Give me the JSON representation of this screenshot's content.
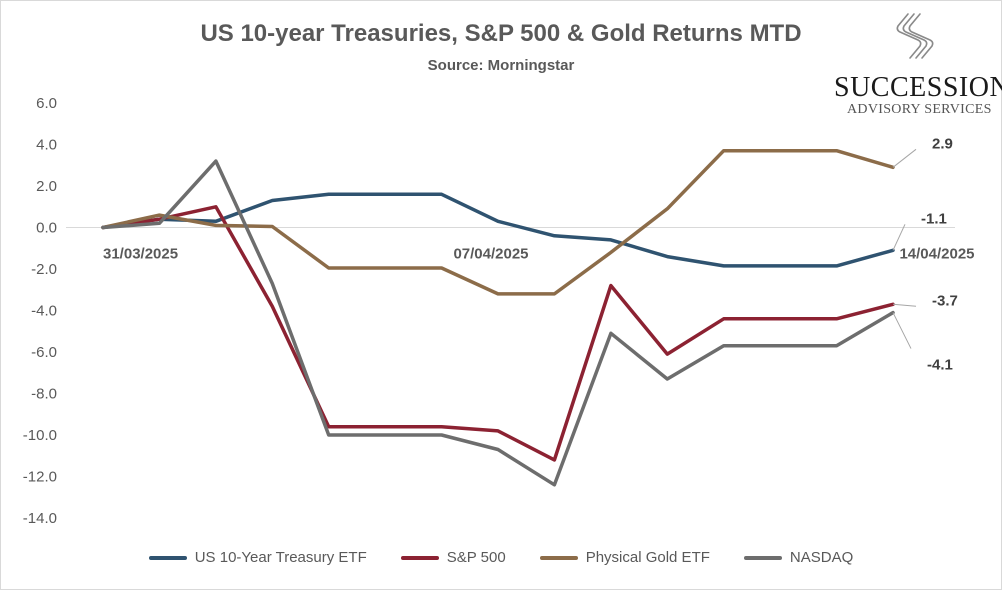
{
  "chart_data": {
    "type": "line",
    "title": "US 10-year Treasuries, S&P 500 & Gold Returns MTD",
    "subtitle": "Source: Morningstar",
    "ylim": [
      -14,
      6
    ],
    "yticks": [
      "6.0",
      "4.0",
      "2.0",
      "0.0",
      "-2.0",
      "-4.0",
      "-6.0",
      "-8.0",
      "-10.0",
      "-12.0",
      "-14.0"
    ],
    "grid": false,
    "legend_position": "bottom",
    "date_labels": [
      {
        "index": 0,
        "text": "31/03/2025"
      },
      {
        "index": 7,
        "text": "07/04/2025"
      },
      {
        "index": 14,
        "text": "14/04/2025"
      }
    ],
    "series": [
      {
        "name": "US 10-Year Treasury ETF",
        "color": "#2f5370",
        "values": [
          0,
          0.4,
          0.3,
          1.3,
          1.6,
          1.6,
          1.6,
          0.3,
          -0.4,
          -0.6,
          -1.4,
          -1.85,
          -1.85,
          -1.85,
          -1.1
        ],
        "end_label": "-1.1"
      },
      {
        "name": "S&P 500",
        "color": "#8c2232",
        "values": [
          0,
          0.4,
          1.0,
          -3.8,
          -9.6,
          -9.6,
          -9.6,
          -9.8,
          -11.2,
          -2.8,
          -6.1,
          -4.4,
          -4.4,
          -4.4,
          -3.7
        ],
        "end_label": "-3.7"
      },
      {
        "name": "Physical Gold ETF",
        "color": "#8c6c49",
        "values": [
          0,
          0.6,
          0.1,
          0.05,
          -1.95,
          -1.95,
          -1.95,
          -3.2,
          -3.2,
          -1.2,
          0.9,
          3.7,
          3.7,
          3.7,
          2.9
        ],
        "end_label": "2.9"
      },
      {
        "name": "NASDAQ",
        "color": "#6d6d6d",
        "values": [
          0,
          0.2,
          3.2,
          -2.7,
          -10.0,
          -10.0,
          -10.0,
          -10.7,
          -12.4,
          -5.1,
          -7.3,
          -5.7,
          -5.7,
          -5.7,
          -4.1
        ],
        "end_label": "-4.1"
      }
    ]
  },
  "logo": {
    "name": "SUCCESSION",
    "tagline": "ADVISORY SERVICES"
  }
}
